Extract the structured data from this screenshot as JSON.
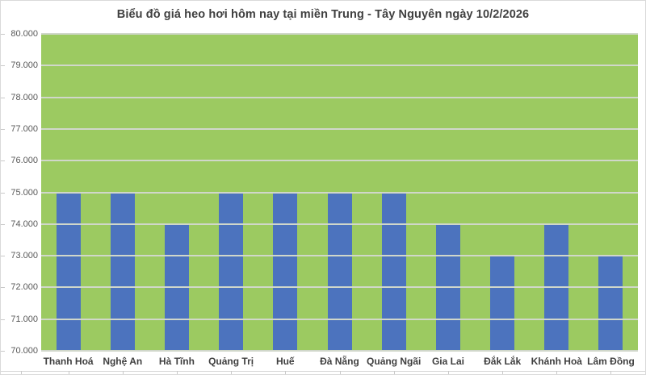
{
  "chart_data": {
    "type": "bar",
    "title": "Biểu đồ giá heo hơi hôm nay tại miền Trung - Tây Nguyên ngày 10/2/2026",
    "categories": [
      "Thanh Hoá",
      "Nghệ An",
      "Hà Tĩnh",
      "Quảng Trị",
      "Huế",
      "Đà Nẵng",
      "Quảng Ngãi",
      "Gia Lai",
      "Đắk Lắk",
      "Khánh Hoà",
      "Lâm Đồng"
    ],
    "values": [
      75000,
      75000,
      74000,
      75000,
      75000,
      75000,
      75000,
      74000,
      73000,
      74000,
      73000
    ],
    "xlabel": "",
    "ylabel": "",
    "ylim": [
      70000,
      80000
    ],
    "y_tick_step": 1000,
    "y_tick_labels": [
      "80.000",
      "79.000",
      "78.000",
      "77.000",
      "76.000",
      "75.000",
      "74.000",
      "73.000",
      "72.000",
      "71.000",
      "70.000"
    ],
    "grid": true,
    "legend": false,
    "colors": {
      "bar": "#4C73BE",
      "plot_background": "#9CCA61",
      "gridline": "#D0D7CA",
      "title_text": "#404040",
      "y_tick_text": "#595959",
      "category_text": "#3F3F3F",
      "frame_border": "#DADADA",
      "background": "#FFFFFF"
    }
  }
}
